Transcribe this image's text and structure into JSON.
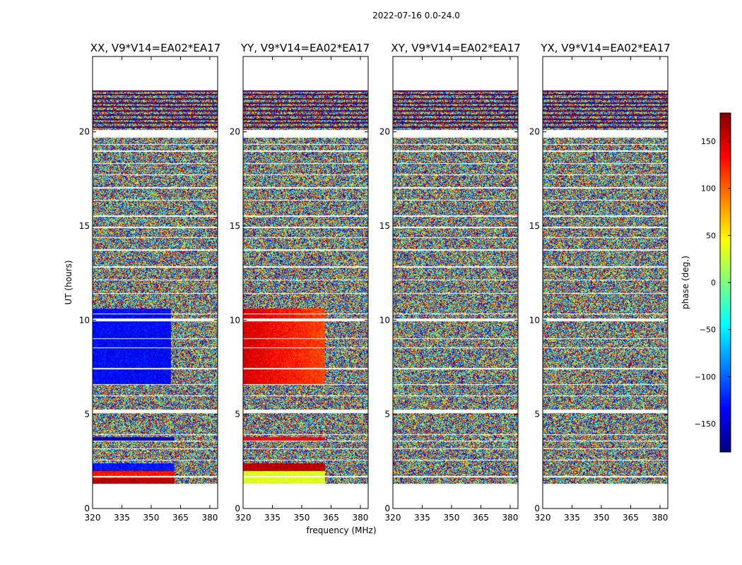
{
  "chart_data": {
    "type": "heatmap",
    "suptitle": "2022-07-16 0.0-24.0",
    "xlabel": "frequency (MHz)",
    "ylabel": "UT (hours)",
    "xlim": [
      320,
      384
    ],
    "ylim": [
      0,
      24
    ],
    "xticks": [
      320,
      335,
      350,
      365,
      380
    ],
    "yticks": [
      0,
      5,
      10,
      15,
      20
    ],
    "colorbar": {
      "label": "phase (deg.)",
      "range": [
        -180,
        180
      ],
      "ticks": [
        150,
        100,
        50,
        0,
        -50,
        -100,
        -150
      ],
      "colormap": "jet"
    },
    "panels": [
      {
        "title": "XX, V9*V14=EA02*EA17",
        "segments": [
          {
            "t0": 1.3,
            "t1": 1.6,
            "f1": 362,
            "phase": 160,
            "note": "coherent"
          },
          {
            "t0": 1.6,
            "t1": 2.0,
            "f1": 362,
            "phase": 130,
            "note": "coherent"
          },
          {
            "t0": 2.0,
            "t1": 2.4,
            "f1": 362,
            "phase": -130,
            "note": "coherent"
          },
          {
            "t0": 3.6,
            "t1": 3.8,
            "f1": 362,
            "phase": -160,
            "note": "coherent"
          },
          {
            "t0": 6.6,
            "t1": 10.6,
            "f1": 360,
            "phase": -135,
            "note": "coherent"
          }
        ]
      },
      {
        "title": "YY, V9*V14=EA02*EA17",
        "segments": [
          {
            "t0": 1.3,
            "t1": 2.0,
            "f1": 362,
            "phase": 35,
            "note": "coherent"
          },
          {
            "t0": 2.0,
            "t1": 2.4,
            "f1": 362,
            "phase": 160,
            "note": "coherent"
          },
          {
            "t0": 3.6,
            "t1": 3.8,
            "f1": 362,
            "phase": 140,
            "note": "coherent"
          },
          {
            "t0": 6.6,
            "t1": 10.6,
            "f1": 362,
            "phase": 150,
            "note": "coherent, gradient to 110"
          }
        ]
      },
      {
        "title": "XY, V9*V14=EA02*EA17",
        "segments": []
      },
      {
        "title": "YX, V9*V14=EA02*EA17",
        "segments": []
      }
    ],
    "gaps_hours": [
      [
        0.0,
        1.3
      ],
      [
        1.65,
        1.72
      ],
      [
        2.55,
        2.6
      ],
      [
        3.15,
        3.2
      ],
      [
        3.55,
        3.6
      ],
      [
        3.9,
        3.95
      ],
      [
        5.05,
        5.25
      ],
      [
        5.95,
        6.0
      ],
      [
        6.55,
        6.6
      ],
      [
        7.4,
        7.45
      ],
      [
        8.5,
        8.55
      ],
      [
        9.0,
        9.05
      ],
      [
        9.95,
        10.1
      ],
      [
        10.3,
        10.35
      ],
      [
        11.4,
        11.45
      ],
      [
        12.1,
        12.15
      ],
      [
        12.8,
        12.85
      ],
      [
        13.7,
        13.75
      ],
      [
        14.35,
        14.4
      ],
      [
        14.9,
        14.95
      ],
      [
        15.5,
        15.55
      ],
      [
        16.35,
        16.4
      ],
      [
        17.0,
        17.05
      ],
      [
        17.7,
        17.75
      ],
      [
        18.3,
        18.35
      ],
      [
        18.95,
        19.0
      ],
      [
        19.3,
        19.35
      ],
      [
        19.7,
        20.1
      ],
      [
        22.2,
        24.0
      ]
    ]
  }
}
